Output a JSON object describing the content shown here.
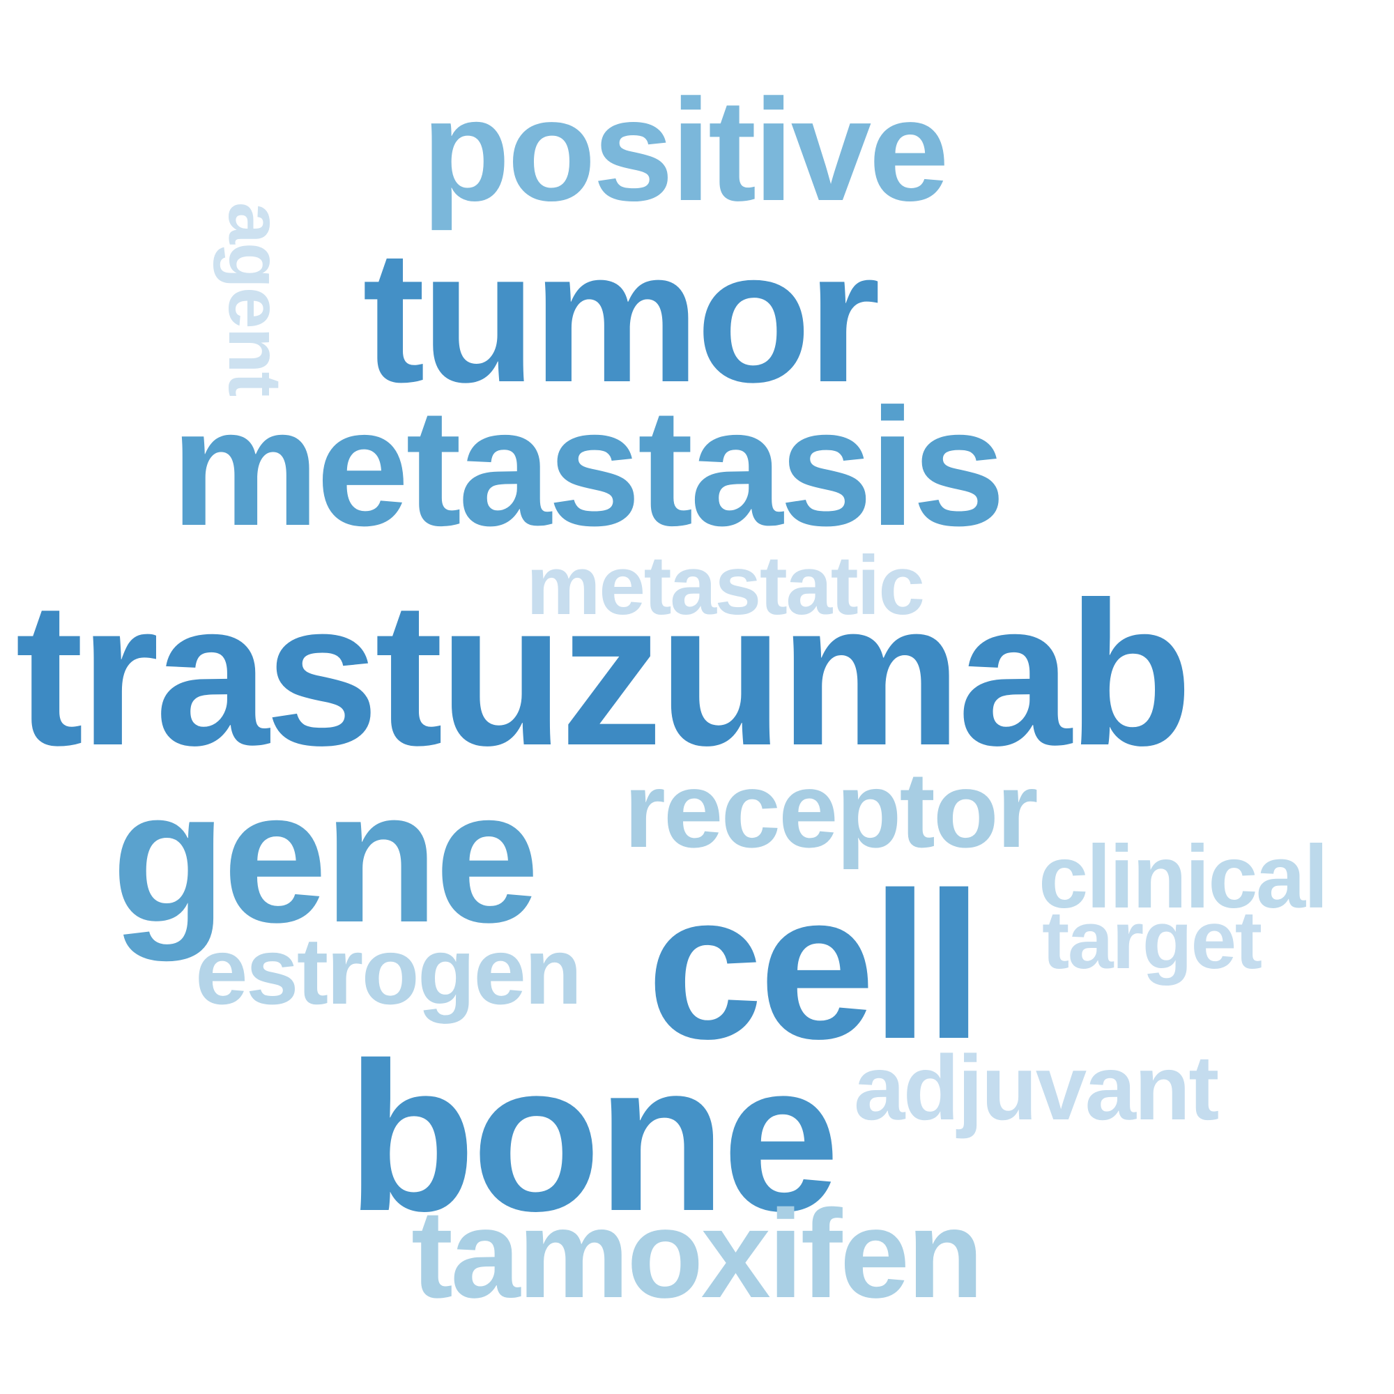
{
  "wordcloud": {
    "words": [
      {
        "key": "trastuzumab",
        "text": "trastuzumab",
        "color": "#3d8ac3"
      },
      {
        "key": "tumor",
        "text": "tumor",
        "color": "#4490c6"
      },
      {
        "key": "cell",
        "text": "cell",
        "color": "#4490c6"
      },
      {
        "key": "bone",
        "text": "bone",
        "color": "#4592c7"
      },
      {
        "key": "metastasis",
        "text": "metastasis",
        "color": "#559fcd"
      },
      {
        "key": "gene",
        "text": "gene",
        "color": "#5aa2ce"
      },
      {
        "key": "positive",
        "text": "positive",
        "color": "#7bb7da"
      },
      {
        "key": "receptor",
        "text": "receptor",
        "color": "#a7cde3"
      },
      {
        "key": "tamoxifen",
        "text": "tamoxifen",
        "color": "#a9cfe4"
      },
      {
        "key": "estrogen",
        "text": "estrogen",
        "color": "#b4d4e8"
      },
      {
        "key": "clinical",
        "text": "clinical",
        "color": "#bcd9eb"
      },
      {
        "key": "adjuvant",
        "text": "adjuvant",
        "color": "#c4dcee"
      },
      {
        "key": "target",
        "text": "target",
        "color": "#c4dcee"
      },
      {
        "key": "metastatic",
        "text": "metastatic",
        "color": "#c7ddee"
      },
      {
        "key": "agent",
        "text": "agent",
        "color": "#cde1f0"
      }
    ]
  }
}
